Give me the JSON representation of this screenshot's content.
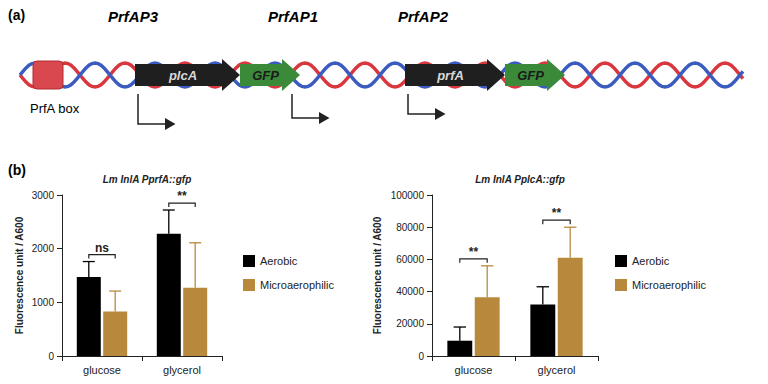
{
  "panel_labels": [
    "(a)",
    "(b)"
  ],
  "diagram": {
    "promoters": [
      "PrfAP3",
      "PrfAP1",
      "PrfAP2"
    ],
    "prfa_box": "PrfA box",
    "genes": [
      {
        "label": "plcA",
        "reporter": "GFP"
      },
      {
        "label": "prfA",
        "reporter": "GFP"
      }
    ]
  },
  "chart_data": [
    {
      "type": "bar",
      "title": "Lm InlA PprfA::gfp",
      "ylabel": "Fluorescence unit / A600",
      "categories": [
        "glucose",
        "glycerol"
      ],
      "series": [
        {
          "name": "Aerobic",
          "color": "#000000",
          "values": [
            1470,
            2280
          ],
          "errors": [
            290,
            440
          ]
        },
        {
          "name": "Microaerophilic",
          "color": "#b8893c",
          "values": [
            830,
            1270
          ],
          "errors": [
            380,
            840
          ]
        }
      ],
      "ylim": [
        0,
        3000
      ],
      "yticks": [
        0,
        1000,
        2000,
        3000
      ],
      "grid": false,
      "legend": "right",
      "annotations": [
        {
          "category": "glucose",
          "text": "ns"
        },
        {
          "category": "glycerol",
          "text": "**"
        }
      ]
    },
    {
      "type": "bar",
      "title": "Lm InlA PplcA::gfp",
      "ylabel": "Fluorescence unit / A600",
      "categories": [
        "glucose",
        "glycerol"
      ],
      "series": [
        {
          "name": "Aerobic",
          "color": "#000000",
          "values": [
            9500,
            32000
          ],
          "errors": [
            8500,
            11000
          ]
        },
        {
          "name": "Microaerophilic",
          "color": "#b8893c",
          "values": [
            36500,
            61000
          ],
          "errors": [
            19500,
            19000
          ]
        }
      ],
      "ylim": [
        0,
        100000
      ],
      "yticks": [
        0,
        20000,
        40000,
        60000,
        80000,
        100000
      ],
      "grid": false,
      "legend": "right",
      "annotations": [
        {
          "category": "glucose",
          "text": "**"
        },
        {
          "category": "glycerol",
          "text": "**"
        }
      ]
    }
  ]
}
